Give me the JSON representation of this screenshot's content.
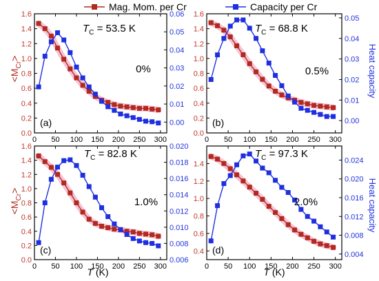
{
  "legend": {
    "mag_label": "Mag. Mom. per Cr",
    "cap_label": "Capacity per Cr",
    "mag_color": "#b22a1e",
    "cap_color": "#1f2fe0",
    "glow_color": "#f4b8d0"
  },
  "axis_text": {
    "left_ylabel": "<M",
    "left_ylabel_sub": "Cr",
    "left_ylabel_end": ">",
    "right_ylabel": "Heat capacity",
    "xlabel": "T",
    "xlabel_unit": " (K)",
    "tc_symbol": "T",
    "tc_sub": "C"
  },
  "chart_data": [
    {
      "type": "line",
      "panel_label": "(a)",
      "percent": "0%",
      "tc_text": " = 53.5 K",
      "x": [
        10,
        25,
        40,
        55,
        70,
        85,
        100,
        115,
        130,
        145,
        160,
        175,
        190,
        205,
        220,
        235,
        250,
        265,
        280,
        295
      ],
      "xlim": [
        0,
        315
      ],
      "xticks": [
        "0",
        "50",
        "100",
        "150",
        "200",
        "250",
        "300"
      ],
      "ylim_left": [
        0,
        1.6
      ],
      "yticks_left": [
        "0.0",
        "0.2",
        "0.4",
        "0.6",
        "0.8",
        "1.0",
        "1.2",
        "1.4",
        "1.6"
      ],
      "ylim_right": [
        -0.006,
        0.06
      ],
      "yticks_right": [
        "0.00",
        "0.01",
        "0.02",
        "0.03",
        "0.04",
        "0.05",
        "0.06"
      ],
      "series": [
        {
          "name": "Mag. Mom. per Cr",
          "axis": "left",
          "values": [
            1.47,
            1.4,
            1.3,
            1.14,
            0.99,
            0.86,
            0.74,
            0.64,
            0.56,
            0.49,
            0.44,
            0.41,
            0.38,
            0.36,
            0.35,
            0.34,
            0.33,
            0.33,
            0.32,
            0.31
          ]
        },
        {
          "name": "Capacity per Cr",
          "axis": "right",
          "values": [
            0.0195,
            0.0365,
            0.0445,
            0.0495,
            0.0455,
            0.0385,
            0.0305,
            0.0245,
            0.0195,
            0.0155,
            0.0115,
            0.0085,
            0.0065,
            0.0045,
            0.0035,
            0.0025,
            0.0015,
            0.0005,
            0.0002,
            -0.0005
          ]
        }
      ]
    },
    {
      "type": "line",
      "panel_label": "(b)",
      "percent": "0.5%",
      "tc_text": " = 68.8 K",
      "x": [
        10,
        25,
        40,
        55,
        70,
        85,
        100,
        115,
        130,
        145,
        160,
        175,
        190,
        205,
        220,
        235,
        250,
        265,
        280,
        295
      ],
      "xlim": [
        0,
        315
      ],
      "xticks": [
        "0",
        "50",
        "100",
        "150",
        "200",
        "250",
        "300"
      ],
      "ylim_left": [
        0,
        1.6
      ],
      "yticks_left": [
        "0.0",
        "0.2",
        "0.4",
        "0.6",
        "0.8",
        "1.0",
        "1.2",
        "1.4",
        "1.6"
      ],
      "ylim_right": [
        -0.006,
        0.052
      ],
      "yticks_right": [
        "0.00",
        "0.01",
        "0.02",
        "0.03",
        "0.04",
        "0.05"
      ],
      "series": [
        {
          "name": "Mag. Mom. per Cr",
          "axis": "left",
          "values": [
            1.48,
            1.44,
            1.38,
            1.29,
            1.17,
            1.05,
            0.93,
            0.82,
            0.72,
            0.63,
            0.56,
            0.51,
            0.47,
            0.44,
            0.41,
            0.39,
            0.37,
            0.36,
            0.35,
            0.34
          ]
        },
        {
          "name": "Capacity per Cr",
          "axis": "right",
          "values": [
            0.02,
            0.032,
            0.04,
            0.046,
            0.049,
            0.049,
            0.045,
            0.04,
            0.034,
            0.028,
            0.022,
            0.017,
            0.012,
            0.009,
            0.006,
            0.005,
            0.004,
            0.003,
            0.002,
            0.002
          ]
        }
      ]
    },
    {
      "type": "line",
      "panel_label": "(c)",
      "percent": "1.0%",
      "tc_text": " = 82.8 K",
      "x": [
        10,
        25,
        40,
        55,
        70,
        85,
        100,
        115,
        130,
        145,
        160,
        175,
        190,
        205,
        220,
        235,
        250,
        265,
        280,
        295
      ],
      "xlim": [
        0,
        315
      ],
      "xticks": [
        "0",
        "50",
        "100",
        "150",
        "200",
        "250",
        "300"
      ],
      "ylim_left": [
        0,
        1.6
      ],
      "yticks_left": [
        "0.0",
        "0.2",
        "0.4",
        "0.6",
        "0.8",
        "1.0",
        "1.2",
        "1.4",
        "1.6"
      ],
      "ylim_right": [
        0.006,
        0.02
      ],
      "yticks_right": [
        "0.006",
        "0.008",
        "0.010",
        "0.012",
        "0.014",
        "0.016",
        "0.018",
        "0.020"
      ],
      "series": [
        {
          "name": "Mag. Mom. per Cr",
          "axis": "left",
          "values": [
            1.46,
            1.38,
            1.3,
            1.2,
            1.08,
            0.94,
            0.8,
            0.67,
            0.57,
            0.51,
            0.47,
            0.45,
            0.43,
            0.42,
            0.4,
            0.39,
            0.37,
            0.36,
            0.35,
            0.33
          ]
        },
        {
          "name": "Capacity per Cr",
          "axis": "right",
          "values": [
            0.0081,
            0.013,
            0.0159,
            0.0174,
            0.0182,
            0.0183,
            0.0176,
            0.0164,
            0.015,
            0.0137,
            0.0124,
            0.0113,
            0.0104,
            0.0097,
            0.0091,
            0.0086,
            0.0083,
            0.0081,
            0.008,
            0.0077
          ]
        }
      ]
    },
    {
      "type": "line",
      "panel_label": "(d)",
      "percent": "2.0%",
      "tc_text": " = 97.3 K",
      "x": [
        10,
        25,
        40,
        55,
        70,
        85,
        100,
        115,
        130,
        145,
        160,
        175,
        190,
        205,
        220,
        235,
        250,
        265,
        280,
        295
      ],
      "xlim": [
        0,
        315
      ],
      "xticks": [
        "0",
        "50",
        "100",
        "150",
        "200",
        "250",
        "300"
      ],
      "ylim_left": [
        0.3,
        1.6
      ],
      "yticks_left": [
        "0.4",
        "0.6",
        "0.8",
        "1.0",
        "1.2",
        "1.4"
      ],
      "ylim_right": [
        0.0028,
        0.027
      ],
      "yticks_right": [
        "0.004",
        "0.008",
        "0.012",
        "0.016",
        "0.020",
        "0.024"
      ],
      "series": [
        {
          "name": "Mag. Mom. per Cr",
          "axis": "left",
          "values": [
            1.48,
            1.45,
            1.4,
            1.34,
            1.27,
            1.2,
            1.13,
            1.06,
            0.99,
            0.91,
            0.84,
            0.77,
            0.7,
            0.64,
            0.59,
            0.55,
            0.51,
            0.48,
            0.46,
            0.44
          ]
        },
        {
          "name": "Capacity per Cr",
          "axis": "right",
          "values": [
            0.0068,
            0.0143,
            0.019,
            0.0207,
            0.023,
            0.0249,
            0.0253,
            0.0238,
            0.0223,
            0.0213,
            0.0197,
            0.0182,
            0.0171,
            0.0155,
            0.0135,
            0.012,
            0.011,
            0.0098,
            0.0087,
            0.0076
          ]
        }
      ]
    }
  ]
}
